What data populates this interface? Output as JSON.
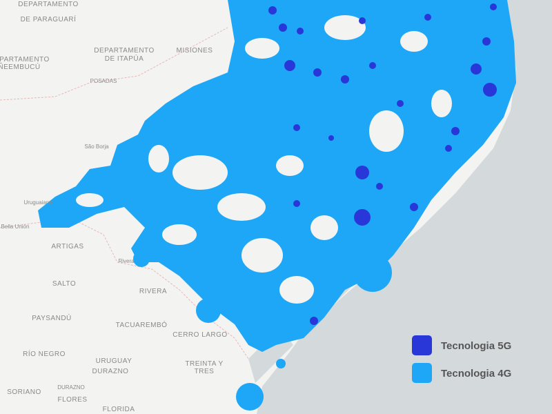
{
  "map": {
    "labels": [
      "DEPARTAMENTO",
      "DE PARAGUARÍ",
      "DEPARTAMENTO",
      "ÑEEMBUCÚ",
      "DEPARTAMENTO",
      "DE ITAPÚA",
      "MISIONES",
      "POSADAS",
      "São Borja",
      "Uruguaiana",
      "Bella Unión",
      "ARTIGAS",
      "Rivera",
      "SALTO",
      "RIVERA",
      "PAYSANDÚ",
      "TACUAREMBÓ",
      "CERRO LARGO",
      "RÍO NEGRO",
      "URUGUAY",
      "DURAZNO",
      "TREINTA Y",
      "TRES",
      "DURAZNO",
      "SORIANO",
      "FLORES",
      "FLORIDA"
    ],
    "legend": {
      "items": [
        {
          "label": "Tecnologia 5G",
          "color": "#2a37d8"
        },
        {
          "label": "Tecnologia 4G",
          "color": "#1ea7f7"
        }
      ]
    }
  }
}
